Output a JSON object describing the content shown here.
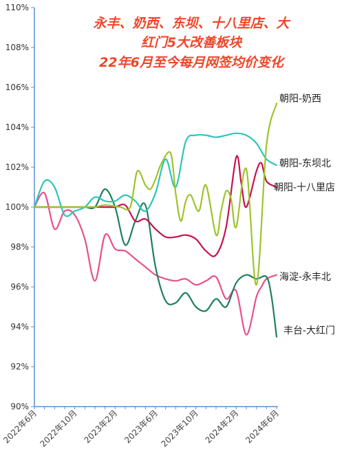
{
  "chart_data": {
    "type": "line",
    "title": [
      "永丰、奶西、东坝、十八里店、大",
      "红门5大改善板块",
      "22年6月至今每月网签均价变化"
    ],
    "ylim": [
      90,
      110
    ],
    "yticks": [
      "90%",
      "92%",
      "94%",
      "96%",
      "98%",
      "100%",
      "102%",
      "104%",
      "106%",
      "108%",
      "110%"
    ],
    "x_start": "2022-06",
    "x_months": 25,
    "xtick_labels": [
      "2022年6月",
      "2022年10月",
      "2023年2月",
      "2023年6月",
      "2023年10月",
      "2024年2月",
      "2024年6月"
    ],
    "grid": false,
    "series": [
      {
        "name": "朝阳-奶西",
        "color": "#9cc42a",
        "x": [
          0,
          2.5,
          3.5,
          5,
          6,
          7,
          8.5,
          9.5,
          10.2,
          11,
          11.5,
          12,
          12.6,
          13.5,
          14,
          14.5,
          15,
          15.5,
          16.3,
          17,
          18,
          18.5,
          19,
          19.5,
          20,
          21,
          22,
          23,
          24
        ],
        "y": [
          100,
          100,
          100,
          100,
          100,
          100.1,
          100,
          100,
          101.8,
          101.1,
          100.9,
          101.4,
          102.2,
          102.7,
          100.7,
          99.3,
          100.3,
          100.6,
          99.8,
          101.1,
          98.6,
          99.8,
          100.8,
          100.4,
          99.0,
          101.9,
          96.1,
          103.1,
          105.2
        ]
      },
      {
        "name": "朝阳-东坝北",
        "color": "#2ec4b8",
        "x": [
          0,
          1,
          2,
          3,
          4,
          5,
          6,
          7,
          8,
          9,
          10,
          11,
          12,
          13,
          14,
          15,
          16,
          17,
          18,
          19,
          20,
          21,
          22,
          23,
          24
        ],
        "y": [
          100,
          101.3,
          101.0,
          99.6,
          99.8,
          100.0,
          100.5,
          100.3,
          100.3,
          100.6,
          100.3,
          99.8,
          100.7,
          102.4,
          101.0,
          103.3,
          103.6,
          103.6,
          103.5,
          103.6,
          103.7,
          103.6,
          103.2,
          102.4,
          102.1
        ]
      },
      {
        "name": "朝阳-十八里店",
        "color": "#c8104c",
        "x": [
          0,
          1,
          2,
          3,
          4,
          5,
          6,
          7,
          8,
          9,
          10,
          11,
          12,
          13,
          14,
          15,
          16,
          17,
          18,
          19,
          20,
          20.5,
          21,
          22,
          22.5,
          23,
          24
        ],
        "y": [
          100,
          100,
          100,
          100,
          100,
          100,
          100,
          100,
          100,
          100.1,
          99.3,
          99.4,
          98.9,
          98.5,
          98.5,
          98.6,
          98.4,
          97.8,
          97.6,
          99.0,
          102.5,
          101.2,
          100.0,
          101.8,
          102.2,
          101.3,
          101.0
        ]
      },
      {
        "name": "海淀-永丰北",
        "color": "#e8508a",
        "x": [
          0,
          1,
          2,
          3,
          4,
          5,
          6,
          7,
          8,
          9,
          10,
          11,
          12,
          13,
          14,
          15,
          16,
          17,
          18,
          19,
          20,
          21,
          22,
          22.5,
          23,
          24
        ],
        "y": [
          100,
          100.7,
          98.9,
          99.8,
          99.6,
          98.4,
          96.3,
          98.6,
          97.9,
          97.8,
          97.4,
          97.0,
          96.6,
          96.4,
          96.3,
          96.4,
          96.1,
          96.3,
          96.5,
          95.4,
          95.8,
          93.6,
          95.5,
          96.0,
          96.4,
          96.6
        ]
      },
      {
        "name": "丰台-大红门",
        "color": "#1e7f5c",
        "x": [
          0,
          1,
          2,
          3,
          4,
          5,
          6,
          7,
          8,
          9,
          10,
          11,
          12,
          13,
          14,
          15,
          16,
          17,
          18,
          19,
          20,
          21,
          22,
          23,
          23.5,
          24
        ],
        "y": [
          100,
          100,
          100,
          100,
          100,
          100,
          100,
          100.9,
          100.0,
          98.1,
          99.3,
          100.1,
          97.0,
          95.3,
          95.2,
          95.7,
          95.0,
          94.8,
          95.4,
          95.0,
          96.2,
          96.6,
          96.4,
          96.5,
          95.5,
          93.5
        ]
      }
    ]
  }
}
